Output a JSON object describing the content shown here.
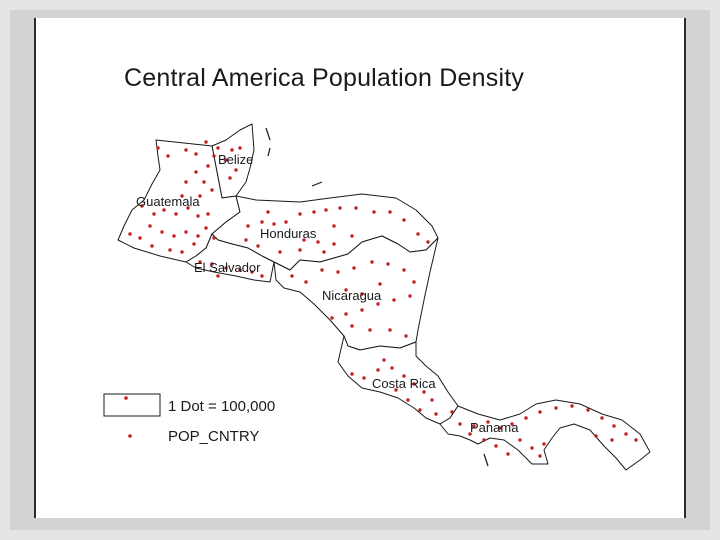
{
  "title": "Central America Population Density",
  "countries": [
    {
      "key": "belize",
      "label": "Belize"
    },
    {
      "key": "guatemala",
      "label": "Guatemala"
    },
    {
      "key": "honduras",
      "label": "Honduras"
    },
    {
      "key": "el_salvador",
      "label": "El Salvador"
    },
    {
      "key": "nicaragua",
      "label": "Nicaragua"
    },
    {
      "key": "costa_rica",
      "label": "Costa Rica"
    },
    {
      "key": "panama",
      "label": "Panama"
    }
  ],
  "legend": {
    "polygon_label": "1 Dot = 100,000",
    "dot_label": "POP_CNTRY"
  },
  "colors": {
    "dot": "#c41e1e",
    "outline": "#1a1a1a",
    "land": "#ffffff"
  }
}
